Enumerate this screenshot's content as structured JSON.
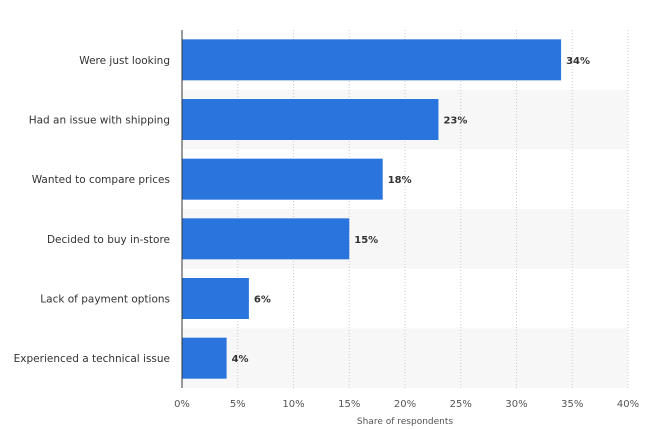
{
  "chart_data": {
    "type": "bar",
    "orientation": "horizontal",
    "categories": [
      "Were just looking",
      "Had an issue with shipping",
      "Wanted to compare prices",
      "Decided to buy in-store",
      "Lack of payment options",
      "Experienced a technical issue"
    ],
    "values": [
      34,
      23,
      18,
      15,
      6,
      4
    ],
    "data_labels": [
      "34%",
      "23%",
      "18%",
      "15%",
      "6%",
      "4%"
    ],
    "xlabel": "Share of respondents",
    "xlim": [
      0,
      40
    ],
    "x_ticks": [
      0,
      5,
      10,
      15,
      20,
      25,
      30,
      35,
      40
    ],
    "x_tick_labels": [
      "0%",
      "5%",
      "10%",
      "15%",
      "20%",
      "25%",
      "30%",
      "35%",
      "40%"
    ],
    "grid": "vertical dotted",
    "bar_color": "#2a74dd",
    "band_color": "#f7f7f7"
  }
}
